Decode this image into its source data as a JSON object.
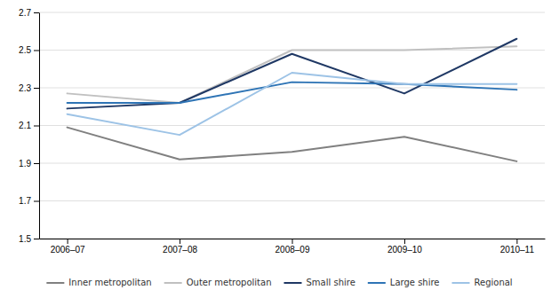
{
  "chart_data": {
    "type": "line",
    "categories": [
      "2006–07",
      "2007–08",
      "2008–09",
      "2009–10",
      "2010–11"
    ],
    "series": [
      {
        "name": "Inner metropolitan",
        "color": "#808080",
        "values": [
          2.09,
          1.92,
          1.96,
          2.04,
          1.91
        ]
      },
      {
        "name": "Outer metropolitan",
        "color": "#c0c0c0",
        "values": [
          2.27,
          2.22,
          2.5,
          2.5,
          2.52
        ]
      },
      {
        "name": "Small shire",
        "color": "#1f3864",
        "values": [
          2.19,
          2.22,
          2.48,
          2.27,
          2.56
        ]
      },
      {
        "name": "Large shire",
        "color": "#2e74b5",
        "values": [
          2.22,
          2.22,
          2.33,
          2.32,
          2.29
        ]
      },
      {
        "name": "Regional",
        "color": "#9dc3e6",
        "values": [
          2.16,
          2.05,
          2.38,
          2.32,
          2.32
        ]
      }
    ],
    "ylim": [
      1.5,
      2.7
    ],
    "yticks": [
      1.5,
      1.7,
      1.9,
      2.1,
      2.3,
      2.5,
      2.7
    ],
    "grid": true,
    "legend": "bottom"
  }
}
